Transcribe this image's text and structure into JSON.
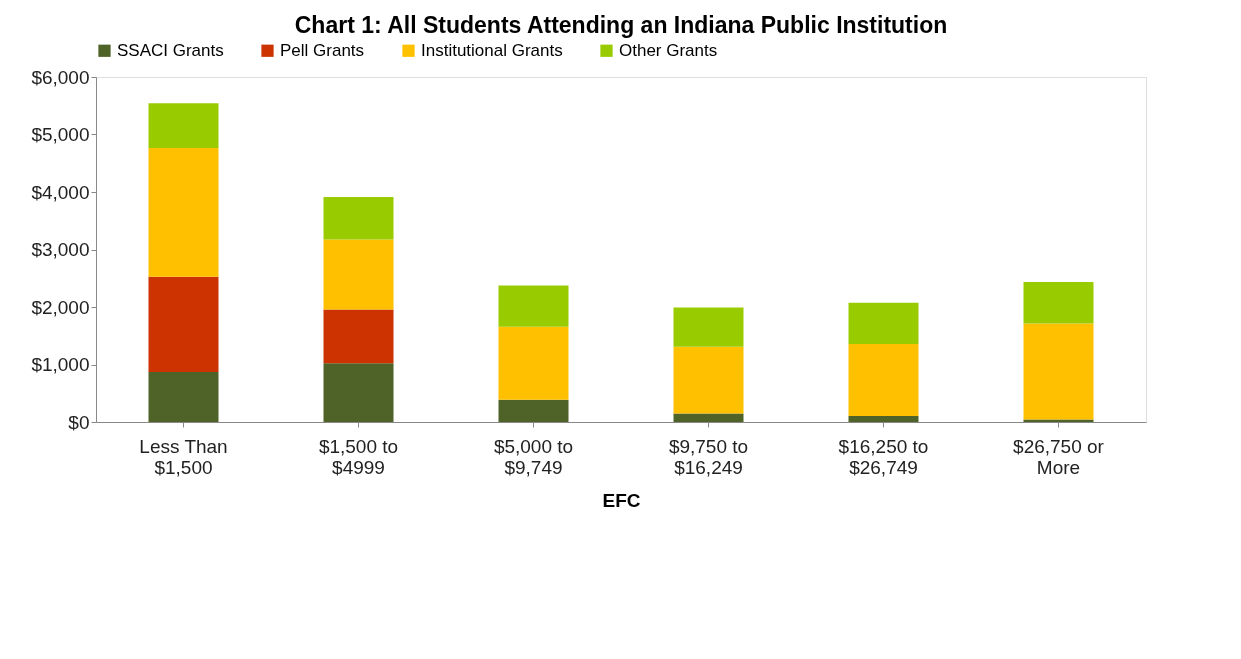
{
  "chart_data": {
    "type": "bar",
    "title": "Chart 1: All Students Attending an Indiana Public Institution",
    "xlabel": "EFC",
    "categories": [
      "Less Than $1,500",
      "$1,500 to $4999",
      "$5,000 to $9,749",
      "$9,750 to $16,249",
      "$16,250 to $26,749",
      "$26,750 or More"
    ],
    "stacked": true,
    "legend": "top",
    "grid": false,
    "ylim": [
      0,
      6000
    ],
    "yticks": [
      {
        "value": 0,
        "label": "$0"
      },
      {
        "value": 1000,
        "label": "$1,000"
      },
      {
        "value": 2000,
        "label": "$2,000"
      },
      {
        "value": 3000,
        "label": "$3,000"
      },
      {
        "value": 4000,
        "label": "$4,000"
      },
      {
        "value": 5000,
        "label": "$5,000"
      },
      {
        "value": 6000,
        "label": "$6,000"
      }
    ],
    "series": [
      {
        "name": "SSACI Grants",
        "color": "#4f6228",
        "values": [
          870,
          1020,
          385,
          150,
          105,
          45
        ]
      },
      {
        "name": "Pell Grants",
        "color": "#cc3300",
        "values": [
          1655,
          935,
          0,
          0,
          0,
          0
        ]
      },
      {
        "name": "Institutional Grants",
        "color": "#ffc000",
        "values": [
          2240,
          1220,
          1270,
          1160,
          1250,
          1670
        ]
      },
      {
        "name": "Other Grants",
        "color": "#99cc00",
        "values": [
          780,
          740,
          720,
          680,
          720,
          720
        ]
      }
    ]
  }
}
